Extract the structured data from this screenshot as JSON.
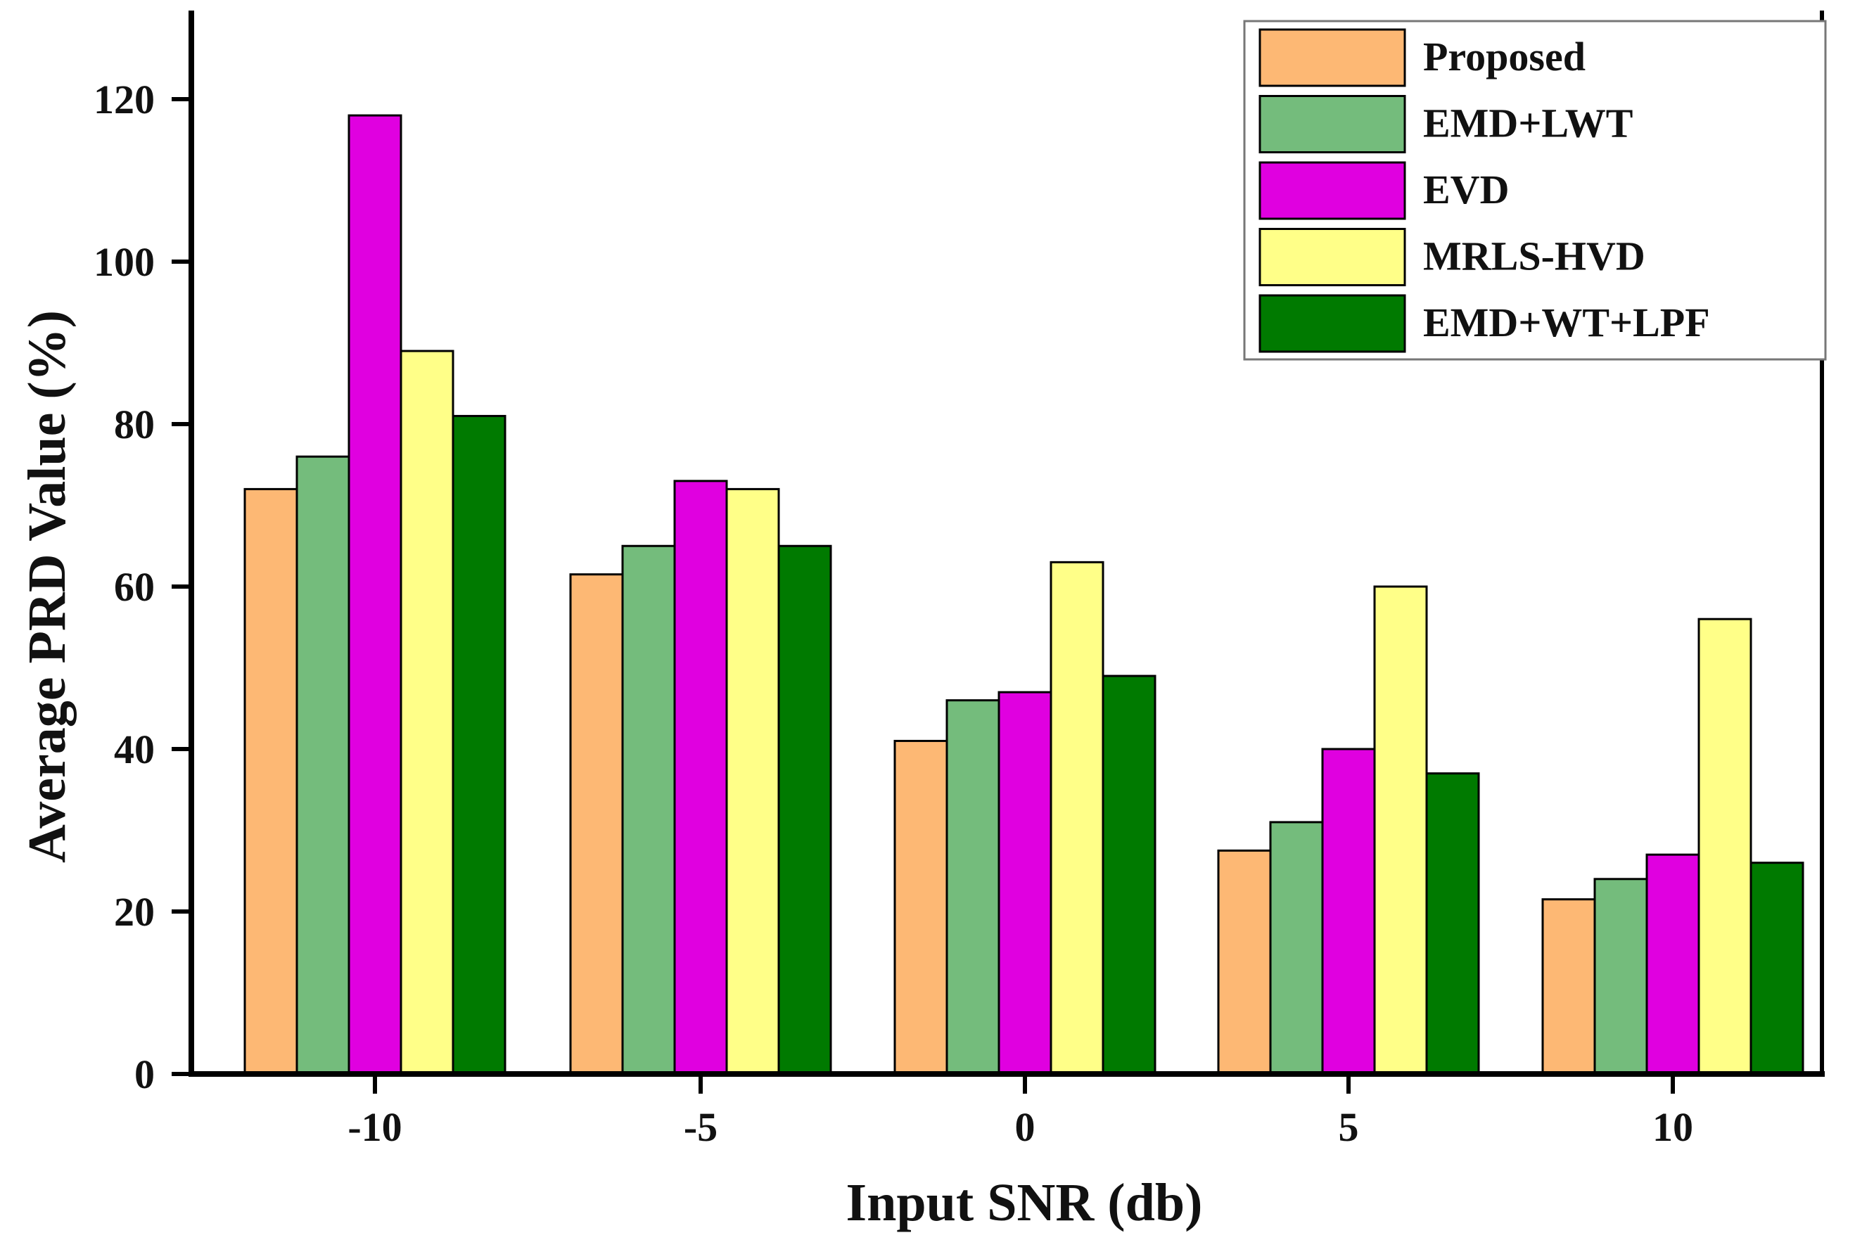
{
  "chart_data": {
    "type": "bar",
    "title": "",
    "xlabel": "Input SNR (db)",
    "ylabel": "Average PRD Value (%)",
    "categories": [
      "-10",
      "-5",
      "0",
      "5",
      "10"
    ],
    "ylim": [
      0,
      130
    ],
    "yticks": [
      0,
      20,
      40,
      60,
      80,
      100,
      120
    ],
    "grid": false,
    "legend_position": "top-right",
    "series": [
      {
        "name": "Proposed",
        "color": "#FDB874",
        "values": [
          72,
          61.5,
          41,
          27.5,
          21.5
        ]
      },
      {
        "name": "EMD+LWT",
        "color": "#74BC7C",
        "values": [
          76,
          65,
          46,
          31,
          24
        ]
      },
      {
        "name": "EVD",
        "color": "#E000E0",
        "values": [
          118,
          73,
          47,
          40,
          27
        ]
      },
      {
        "name": "MRLS-HVD",
        "color": "#FFFF88",
        "values": [
          89,
          72,
          63,
          60,
          56
        ]
      },
      {
        "name": "EMD+WT+LPF",
        "color": "#007A00",
        "values": [
          81,
          65,
          49,
          37,
          26
        ]
      }
    ]
  }
}
